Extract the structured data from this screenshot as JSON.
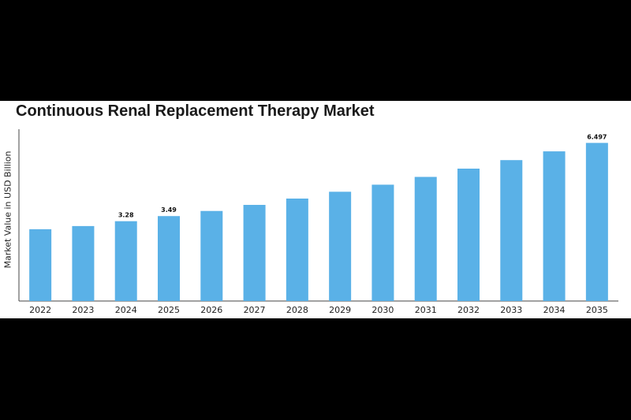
{
  "title": "Continuous Renal Replacement Therapy Market",
  "chart_data": {
    "type": "bar",
    "title": "Continuous Renal Replacement Therapy Market",
    "xlabel": "",
    "ylabel": "Market Value in USD Billion",
    "categories": [
      "2022",
      "2023",
      "2024",
      "2025",
      "2026",
      "2027",
      "2028",
      "2029",
      "2030",
      "2031",
      "2032",
      "2033",
      "2034",
      "2035"
    ],
    "values": [
      2.95,
      3.08,
      3.28,
      3.49,
      3.7,
      3.95,
      4.21,
      4.49,
      4.78,
      5.1,
      5.44,
      5.79,
      6.15,
      6.497
    ],
    "data_labels": {
      "2024": "3.28",
      "2025": "3.49",
      "2035": "6.497"
    },
    "ylim": [
      0,
      6.8
    ],
    "grid": false,
    "legend": "none",
    "bar_color": "#5ab1e7"
  }
}
